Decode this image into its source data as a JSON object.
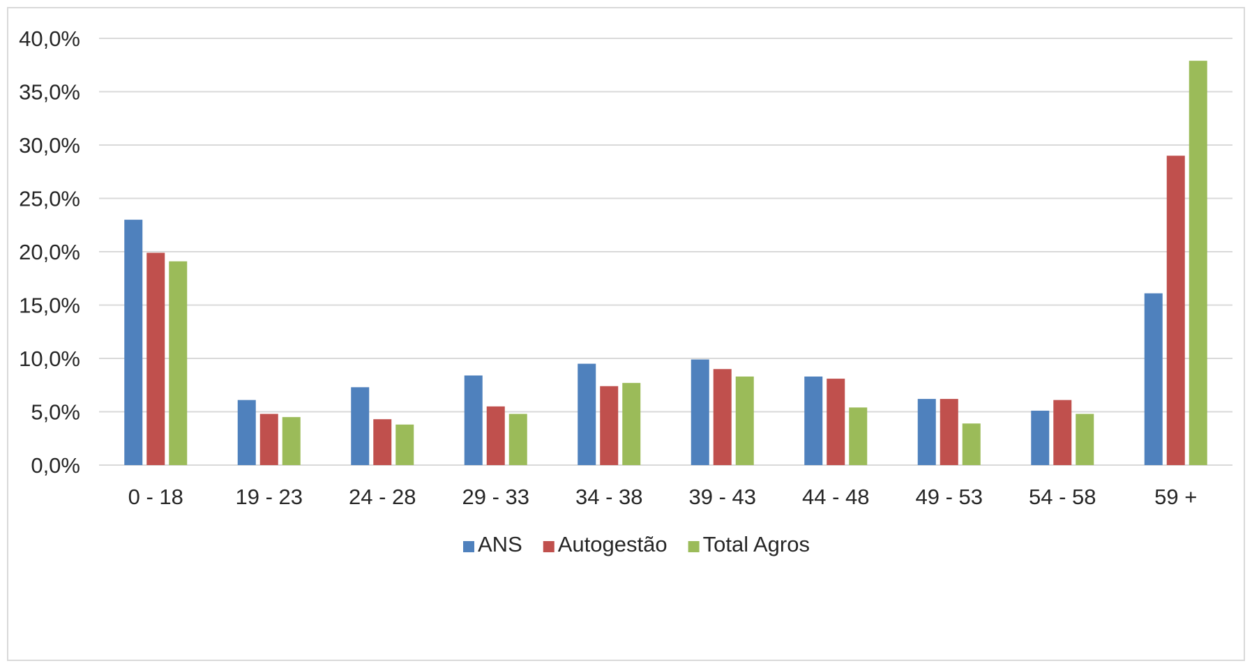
{
  "chart_data": {
    "type": "bar",
    "title": "",
    "xlabel": "",
    "ylabel": "",
    "categories": [
      "0 - 18",
      "19 - 23",
      "24 - 28",
      "29 - 33",
      "34 - 38",
      "39 - 43",
      "44 - 48",
      "49 - 53",
      "54 - 58",
      "59 +"
    ],
    "series": [
      {
        "name": "ANS",
        "color": "#4f81bd",
        "values": [
          23.0,
          6.1,
          7.3,
          8.4,
          9.5,
          9.9,
          8.3,
          6.2,
          5.1,
          16.1
        ]
      },
      {
        "name": "Autogestão",
        "color": "#c0504d",
        "values": [
          19.9,
          4.8,
          4.3,
          5.5,
          7.4,
          9.0,
          8.1,
          6.2,
          6.1,
          29.0
        ]
      },
      {
        "name": "Total Agros",
        "color": "#9bbb59",
        "values": [
          19.1,
          4.5,
          3.8,
          4.8,
          7.7,
          8.3,
          5.4,
          3.9,
          4.8,
          37.9
        ]
      }
    ],
    "ylim": [
      0,
      40
    ],
    "ytick_labels": [
      "0,0%",
      "5,0%",
      "10,0%",
      "15,0%",
      "20,0%",
      "25,0%",
      "30,0%",
      "35,0%",
      "40,0%"
    ],
    "grid": true,
    "legend_position": "bottom"
  }
}
